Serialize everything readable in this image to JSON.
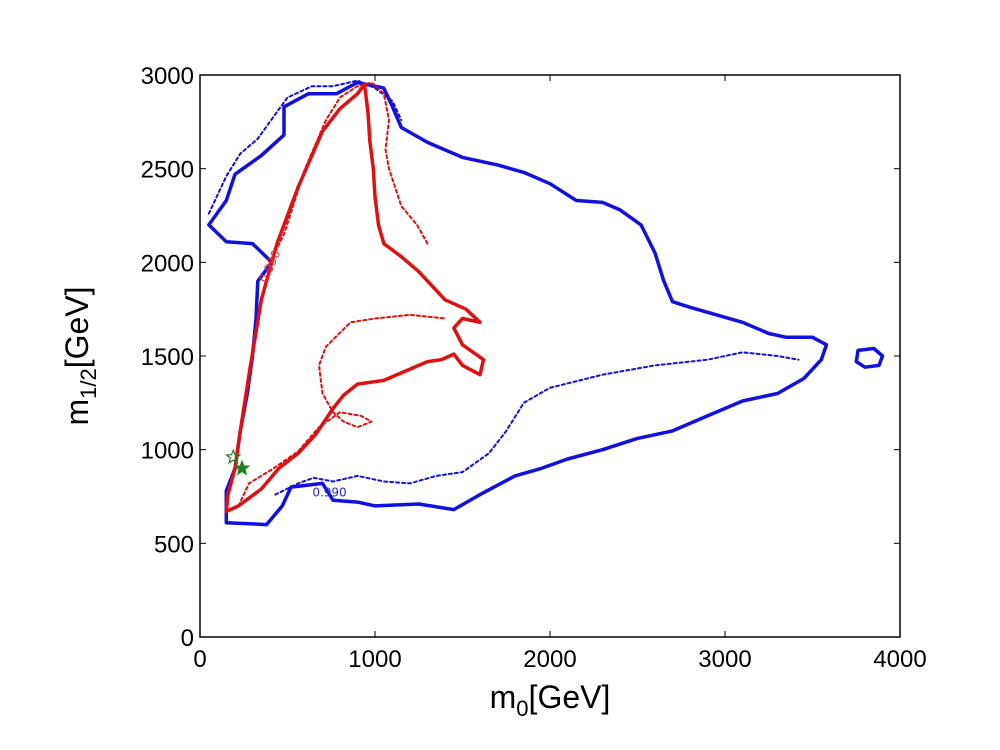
{
  "chart_data": {
    "type": "contour",
    "xlabel": "m",
    "xlabel_sub": "0",
    "xlabel_unit": "[GeV]",
    "ylabel": "m",
    "ylabel_sub": "1/2",
    "ylabel_unit": "[GeV]",
    "xlim": [
      0,
      4000
    ],
    "ylim": [
      0,
      3000
    ],
    "xticks": [
      "0",
      "1000",
      "2000",
      "3000",
      "4000"
    ],
    "yticks": [
      "0",
      "500",
      "1000",
      "1500",
      "2000",
      "2500",
      "3000"
    ],
    "xtick_values": [
      0,
      1000,
      2000,
      3000,
      4000
    ],
    "ytick_values": [
      0,
      500,
      1000,
      1500,
      2000,
      2500,
      3000
    ],
    "grid": false,
    "contour_labels": [
      {
        "text": "0.990",
        "x": 740,
        "y": 750,
        "color": "#2b2bd6",
        "rotate": 0
      },
      {
        "text": "0.990",
        "x": 420,
        "y": 1970,
        "color": "#e03030",
        "rotate": -65
      }
    ],
    "series": [
      {
        "style": "solid",
        "color": "#1010e0",
        "points": [
          [
            150,
            610
          ],
          [
            380,
            600
          ],
          [
            470,
            700
          ],
          [
            520,
            800
          ],
          [
            700,
            820
          ],
          [
            760,
            730
          ],
          [
            900,
            720
          ],
          [
            1000,
            700
          ],
          [
            1250,
            710
          ],
          [
            1450,
            680
          ],
          [
            1600,
            760
          ],
          [
            1800,
            860
          ],
          [
            1950,
            900
          ],
          [
            2100,
            950
          ],
          [
            2300,
            1000
          ],
          [
            2500,
            1060
          ],
          [
            2700,
            1100
          ],
          [
            2900,
            1180
          ],
          [
            3100,
            1260
          ],
          [
            3300,
            1300
          ],
          [
            3450,
            1380
          ],
          [
            3550,
            1480
          ],
          [
            3580,
            1560
          ],
          [
            3500,
            1600
          ],
          [
            3350,
            1600
          ],
          [
            3250,
            1620
          ],
          [
            3100,
            1680
          ],
          [
            2950,
            1720
          ],
          [
            2800,
            1760
          ],
          [
            2700,
            1790
          ],
          [
            2650,
            1900
          ],
          [
            2600,
            2050
          ],
          [
            2520,
            2200
          ],
          [
            2400,
            2280
          ],
          [
            2300,
            2320
          ],
          [
            2150,
            2330
          ],
          [
            2000,
            2420
          ],
          [
            1850,
            2480
          ],
          [
            1700,
            2520
          ],
          [
            1500,
            2560
          ],
          [
            1300,
            2640
          ],
          [
            1150,
            2720
          ],
          [
            1100,
            2830
          ],
          [
            1050,
            2930
          ],
          [
            900,
            2960
          ],
          [
            780,
            2900
          ],
          [
            620,
            2900
          ],
          [
            480,
            2830
          ],
          [
            480,
            2680
          ],
          [
            350,
            2570
          ],
          [
            260,
            2510
          ],
          [
            200,
            2470
          ],
          [
            150,
            2330
          ],
          [
            50,
            2200
          ],
          [
            150,
            2110
          ],
          [
            300,
            2100
          ],
          [
            410,
            2000
          ],
          [
            330,
            1900
          ],
          [
            320,
            1700
          ],
          [
            300,
            1500
          ],
          [
            270,
            1300
          ],
          [
            230,
            1100
          ],
          [
            200,
            900
          ],
          [
            150,
            780
          ],
          [
            150,
            610
          ]
        ]
      },
      {
        "style": "dashed",
        "color": "#1010e0",
        "points": [
          [
            430,
            760
          ],
          [
            560,
            820
          ],
          [
            650,
            850
          ],
          [
            760,
            830
          ],
          [
            900,
            860
          ],
          [
            1050,
            830
          ],
          [
            1200,
            820
          ],
          [
            1350,
            860
          ],
          [
            1500,
            880
          ],
          [
            1650,
            980
          ],
          [
            1750,
            1100
          ],
          [
            1850,
            1250
          ],
          [
            2000,
            1330
          ],
          [
            2300,
            1400
          ],
          [
            2600,
            1450
          ],
          [
            2900,
            1480
          ],
          [
            3100,
            1520
          ],
          [
            3300,
            1500
          ],
          [
            3420,
            1480
          ]
        ]
      },
      {
        "style": "dashed",
        "color": "#1010e0",
        "points": [
          [
            50,
            2260
          ],
          [
            150,
            2460
          ],
          [
            230,
            2580
          ],
          [
            330,
            2660
          ],
          [
            430,
            2790
          ],
          [
            500,
            2880
          ],
          [
            640,
            2940
          ],
          [
            760,
            2940
          ],
          [
            900,
            2970
          ],
          [
            1000,
            2930
          ],
          [
            1100,
            2860
          ],
          [
            1150,
            2760
          ]
        ]
      },
      {
        "style": "solid",
        "color": "#e01010",
        "points": [
          [
            150,
            670
          ],
          [
            220,
            700
          ],
          [
            350,
            790
          ],
          [
            450,
            900
          ],
          [
            560,
            980
          ],
          [
            660,
            1080
          ],
          [
            760,
            1220
          ],
          [
            820,
            1290
          ],
          [
            900,
            1350
          ],
          [
            1050,
            1370
          ],
          [
            1200,
            1430
          ],
          [
            1300,
            1470
          ],
          [
            1380,
            1480
          ],
          [
            1450,
            1510
          ],
          [
            1500,
            1450
          ],
          [
            1600,
            1400
          ],
          [
            1620,
            1480
          ],
          [
            1500,
            1560
          ],
          [
            1450,
            1650
          ],
          [
            1500,
            1700
          ],
          [
            1600,
            1680
          ],
          [
            1520,
            1750
          ],
          [
            1400,
            1800
          ],
          [
            1300,
            1900
          ],
          [
            1250,
            1950
          ],
          [
            1150,
            2030
          ],
          [
            1050,
            2100
          ],
          [
            1020,
            2200
          ],
          [
            1000,
            2350
          ],
          [
            990,
            2500
          ],
          [
            970,
            2650
          ],
          [
            960,
            2800
          ],
          [
            940,
            2950
          ],
          [
            900,
            2900
          ],
          [
            800,
            2820
          ],
          [
            700,
            2700
          ],
          [
            560,
            2400
          ],
          [
            440,
            2100
          ],
          [
            350,
            1800
          ],
          [
            280,
            1400
          ],
          [
            230,
            1100
          ],
          [
            200,
            900
          ],
          [
            160,
            760
          ],
          [
            150,
            670
          ]
        ]
      },
      {
        "style": "dashed",
        "color": "#e01010",
        "points": [
          [
            220,
            700
          ],
          [
            280,
            820
          ],
          [
            420,
            900
          ],
          [
            560,
            990
          ],
          [
            680,
            1120
          ],
          [
            800,
            1200
          ],
          [
            920,
            1180
          ],
          [
            980,
            1150
          ],
          [
            900,
            1120
          ],
          [
            820,
            1150
          ],
          [
            760,
            1200
          ],
          [
            700,
            1300
          ],
          [
            680,
            1450
          ],
          [
            720,
            1550
          ],
          [
            860,
            1680
          ],
          [
            1000,
            1700
          ],
          [
            1200,
            1720
          ],
          [
            1400,
            1700
          ]
        ]
      },
      {
        "style": "dashed",
        "color": "#e01010",
        "points": [
          [
            400,
            2000
          ],
          [
            480,
            2150
          ],
          [
            600,
            2500
          ],
          [
            720,
            2760
          ],
          [
            800,
            2880
          ],
          [
            900,
            2940
          ],
          [
            980,
            2960
          ],
          [
            1050,
            2900
          ],
          [
            1080,
            2760
          ],
          [
            1060,
            2600
          ],
          [
            1080,
            2500
          ],
          [
            1150,
            2300
          ],
          [
            1240,
            2200
          ],
          [
            1300,
            2100
          ]
        ]
      },
      {
        "style": "solid",
        "color": "#1010e0",
        "points": [
          [
            3750,
            1470
          ],
          [
            3800,
            1440
          ],
          [
            3880,
            1450
          ],
          [
            3900,
            1500
          ],
          [
            3850,
            1540
          ],
          [
            3760,
            1530
          ],
          [
            3750,
            1470
          ]
        ]
      }
    ],
    "markers": [
      {
        "symbol": "star",
        "x": 240,
        "y": 900,
        "color": "#208020",
        "filled": true
      },
      {
        "symbol": "star",
        "x": 190,
        "y": 960,
        "color": "#208020",
        "filled": false
      }
    ]
  }
}
